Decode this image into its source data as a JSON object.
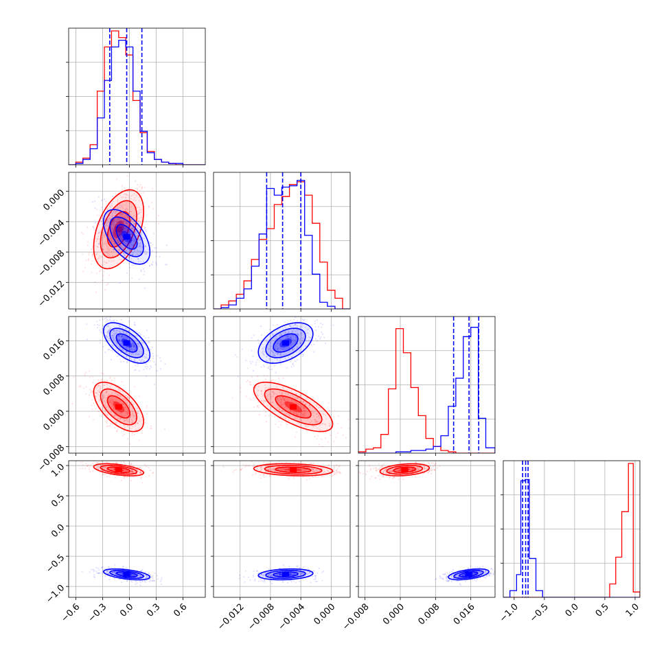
{
  "colors": {
    "series_red": "#ff0000",
    "series_blue": "#0000ff",
    "grid": "#b0b0b0",
    "axis": "#000000"
  },
  "chart_data": {
    "type": "corner",
    "grid": true,
    "parameter_count": 4,
    "parameters": [
      {
        "index": 0,
        "range": [
          -0.68,
          0.85
        ],
        "ticks": [
          -0.6,
          -0.3,
          0.0,
          0.3,
          0.6
        ],
        "tick_labels": [
          "−0.6",
          "−0.3",
          "0.0",
          "0.3",
          "0.6"
        ]
      },
      {
        "index": 1,
        "range": [
          -0.0155,
          0.0025
        ],
        "ticks": [
          -0.012,
          -0.008,
          -0.004,
          0.0
        ],
        "tick_labels": [
          "−0.012",
          "−0.008",
          "−0.004",
          "0.000"
        ]
      },
      {
        "index": 2,
        "range": [
          -0.0095,
          0.0215
        ],
        "ticks": [
          -0.008,
          0.0,
          0.008,
          0.016
        ],
        "tick_labels": [
          "−0.008",
          "0.000",
          "0.008",
          "0.016"
        ]
      },
      {
        "index": 3,
        "range": [
          -1.18,
          1.08
        ],
        "ticks": [
          -1.0,
          -0.5,
          0.0,
          0.5,
          1.0
        ],
        "tick_labels": [
          "−1.0",
          "−0.5",
          "0.0",
          "0.5",
          "1.0"
        ]
      }
    ],
    "series": [
      {
        "color": "#ff0000",
        "means": [
          -0.12,
          -0.005,
          0.001,
          0.93
        ],
        "stds": [
          0.14,
          0.0026,
          0.0028,
          0.05
        ],
        "correlations": [
          [
            1.0,
            0.45,
            -0.6,
            -0.5
          ],
          [
            0.45,
            1.0,
            -0.7,
            -0.2
          ],
          [
            -0.6,
            -0.7,
            1.0,
            0.3
          ],
          [
            -0.5,
            -0.2,
            0.3,
            1.0
          ]
        ]
      },
      {
        "color": "#0000ff",
        "means": [
          -0.03,
          -0.006,
          0.0155,
          -0.8
        ],
        "stds": [
          0.13,
          0.0018,
          0.0023,
          0.045
        ],
        "correlations": [
          [
            1.0,
            -0.55,
            -0.6,
            -0.5
          ],
          [
            -0.55,
            1.0,
            0.45,
            0.2
          ],
          [
            -0.6,
            0.45,
            1.0,
            0.5
          ],
          [
            -0.5,
            0.2,
            0.5,
            1.0
          ]
        ]
      }
    ],
    "quantile_lines": {
      "color": "#0000ff",
      "style": "dashed",
      "values": [
        [
          -0.22,
          -0.03,
          0.14
        ],
        [
          -0.0085,
          -0.0064,
          -0.004
        ],
        [
          0.0121,
          0.0156,
          0.0178
        ],
        [
          -0.86,
          -0.81,
          -0.77
        ]
      ]
    },
    "histograms": [
      {
        "x_edges": [
          -0.68,
          -0.6,
          -0.52,
          -0.44,
          -0.36,
          -0.28,
          -0.2,
          -0.12,
          -0.04,
          0.04,
          0.12,
          0.2,
          0.28,
          0.36,
          0.44,
          0.52,
          0.6,
          0.68,
          0.76,
          0.85
        ],
        "red": [
          0.0,
          0.02,
          0.05,
          0.15,
          0.55,
          0.88,
          1.0,
          0.95,
          0.82,
          0.48,
          0.24,
          0.1,
          0.04,
          0.02,
          0.01,
          0.0,
          0.0,
          0.0,
          0.0
        ],
        "blue": [
          0.0,
          0.01,
          0.04,
          0.12,
          0.35,
          0.63,
          0.88,
          0.93,
          0.88,
          0.55,
          0.25,
          0.09,
          0.04,
          0.02,
          0.01,
          0.01,
          0.0,
          0.0,
          0.0
        ]
      },
      {
        "x_edges": [
          -0.0155,
          -0.0145,
          -0.0135,
          -0.0125,
          -0.0115,
          -0.0105,
          -0.0095,
          -0.0085,
          -0.0075,
          -0.0065,
          -0.0055,
          -0.0045,
          -0.0035,
          -0.0025,
          -0.0015,
          -0.0005,
          0.0005,
          0.0015,
          0.0025
        ],
        "red": [
          0.0,
          0.03,
          0.06,
          0.11,
          0.21,
          0.37,
          0.52,
          0.6,
          0.78,
          0.84,
          0.93,
          0.95,
          0.85,
          0.64,
          0.35,
          0.14,
          0.08,
          0.0
        ],
        "blue": [
          0.0,
          0.01,
          0.03,
          0.08,
          0.15,
          0.32,
          0.56,
          0.9,
          0.85,
          0.91,
          0.92,
          0.96,
          0.55,
          0.26,
          0.05,
          0.02,
          0.0,
          0.0
        ]
      },
      {
        "x_edges": [
          -0.0095,
          -0.0078,
          -0.0061,
          -0.0044,
          -0.0027,
          -0.001,
          0.0007,
          0.0024,
          0.0041,
          0.0058,
          0.0075,
          0.0092,
          0.0109,
          0.0126,
          0.0143,
          0.016,
          0.0177,
          0.0194,
          0.0215
        ],
        "red": [
          0.01,
          0.03,
          0.04,
          0.14,
          0.48,
          0.93,
          0.75,
          0.49,
          0.28,
          0.11,
          0.05,
          0.02,
          0.01,
          0.0,
          0.0,
          0.0,
          0.0,
          0.0
        ],
        "blue": [
          0.0,
          0.0,
          0.0,
          0.0,
          0.0,
          0.01,
          0.01,
          0.02,
          0.02,
          0.03,
          0.05,
          0.13,
          0.35,
          0.56,
          0.87,
          0.94,
          0.26,
          0.04
        ]
      },
      {
        "x_edges": [
          -1.18,
          -1.07,
          -0.96,
          -0.89,
          -0.82,
          -0.75,
          -0.64,
          -0.53,
          -0.42,
          0.58,
          0.68,
          0.78,
          0.89,
          0.97,
          1.08
        ],
        "red": [
          0.0,
          0.0,
          0.0,
          0.0,
          0.0,
          0.0,
          0.0,
          0.0,
          0.0,
          0.1,
          0.3,
          0.64,
          1.0,
          0.04
        ],
        "blue": [
          0.0,
          0.05,
          0.17,
          0.87,
          0.88,
          0.29,
          0.05,
          0.0,
          0.0,
          0.0,
          0.0,
          0.0,
          0.0,
          0.0
        ]
      }
    ],
    "panels": [
      {
        "row": 0,
        "col": 0,
        "kind": "histogram"
      },
      {
        "row": 1,
        "col": 0,
        "kind": "joint"
      },
      {
        "row": 1,
        "col": 1,
        "kind": "histogram"
      },
      {
        "row": 2,
        "col": 0,
        "kind": "joint"
      },
      {
        "row": 2,
        "col": 1,
        "kind": "joint"
      },
      {
        "row": 2,
        "col": 2,
        "kind": "histogram"
      },
      {
        "row": 3,
        "col": 0,
        "kind": "joint"
      },
      {
        "row": 3,
        "col": 1,
        "kind": "joint"
      },
      {
        "row": 3,
        "col": 2,
        "kind": "joint"
      },
      {
        "row": 3,
        "col": 3,
        "kind": "histogram"
      }
    ]
  }
}
